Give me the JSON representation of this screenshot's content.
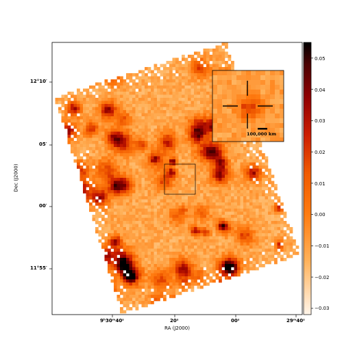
{
  "figure": {
    "xlabel": "RA (J2000)",
    "ylabel": "Dec (J2000)",
    "ra_ticks": [
      {
        "label": "9ʰ30ᵐ40ˢ"
      },
      {
        "label": "20ˢ"
      },
      {
        "label": "00ˢ"
      },
      {
        "label": "29ᵐ40ˢ"
      }
    ],
    "dec_ticks": [
      {
        "label": "12°10′"
      },
      {
        "label": "05′"
      },
      {
        "label": "00′"
      },
      {
        "label": "11°55′"
      }
    ],
    "colorbar": {
      "range": [
        -0.032,
        0.055
      ],
      "colormap": "gist_heat_r",
      "ticks": [
        "0.05",
        "0.04",
        "0.03",
        "0.02",
        "0.01",
        "0.00",
        "−0.01",
        "−0.02",
        "−0.03"
      ],
      "tick_values": [
        0.05,
        0.04,
        0.03,
        0.02,
        0.01,
        0.0,
        -0.01,
        -0.02,
        -0.03
      ]
    },
    "inset": {
      "scale_label": "100,000 km"
    }
  }
}
